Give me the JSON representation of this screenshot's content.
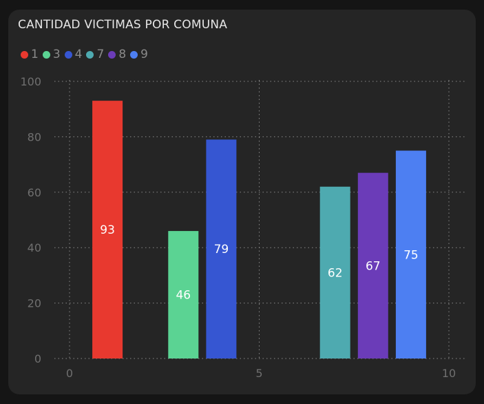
{
  "chart_data": {
    "type": "bar",
    "title": "CANTIDAD VICTIMAS POR COMUNA",
    "xlabel": "",
    "ylabel": "",
    "xlim": [
      0,
      10
    ],
    "ylim": [
      0,
      100
    ],
    "x_ticks": [
      "0",
      "5",
      "10"
    ],
    "y_ticks": [
      "0",
      "20",
      "40",
      "60",
      "80",
      "100"
    ],
    "grid": true,
    "legend_position": "top-left",
    "series": [
      {
        "name": "1",
        "x": 1,
        "value": 93,
        "color": "#e8392f"
      },
      {
        "name": "3",
        "x": 3,
        "value": 46,
        "color": "#5bd393"
      },
      {
        "name": "4",
        "x": 4,
        "value": 79,
        "color": "#3656d2"
      },
      {
        "name": "7",
        "x": 7,
        "value": 62,
        "color": "#4eaab0"
      },
      {
        "name": "8",
        "x": 8,
        "value": 67,
        "color": "#6b3cb8"
      },
      {
        "name": "9",
        "x": 9,
        "value": 75,
        "color": "#4d7ff2"
      }
    ]
  }
}
